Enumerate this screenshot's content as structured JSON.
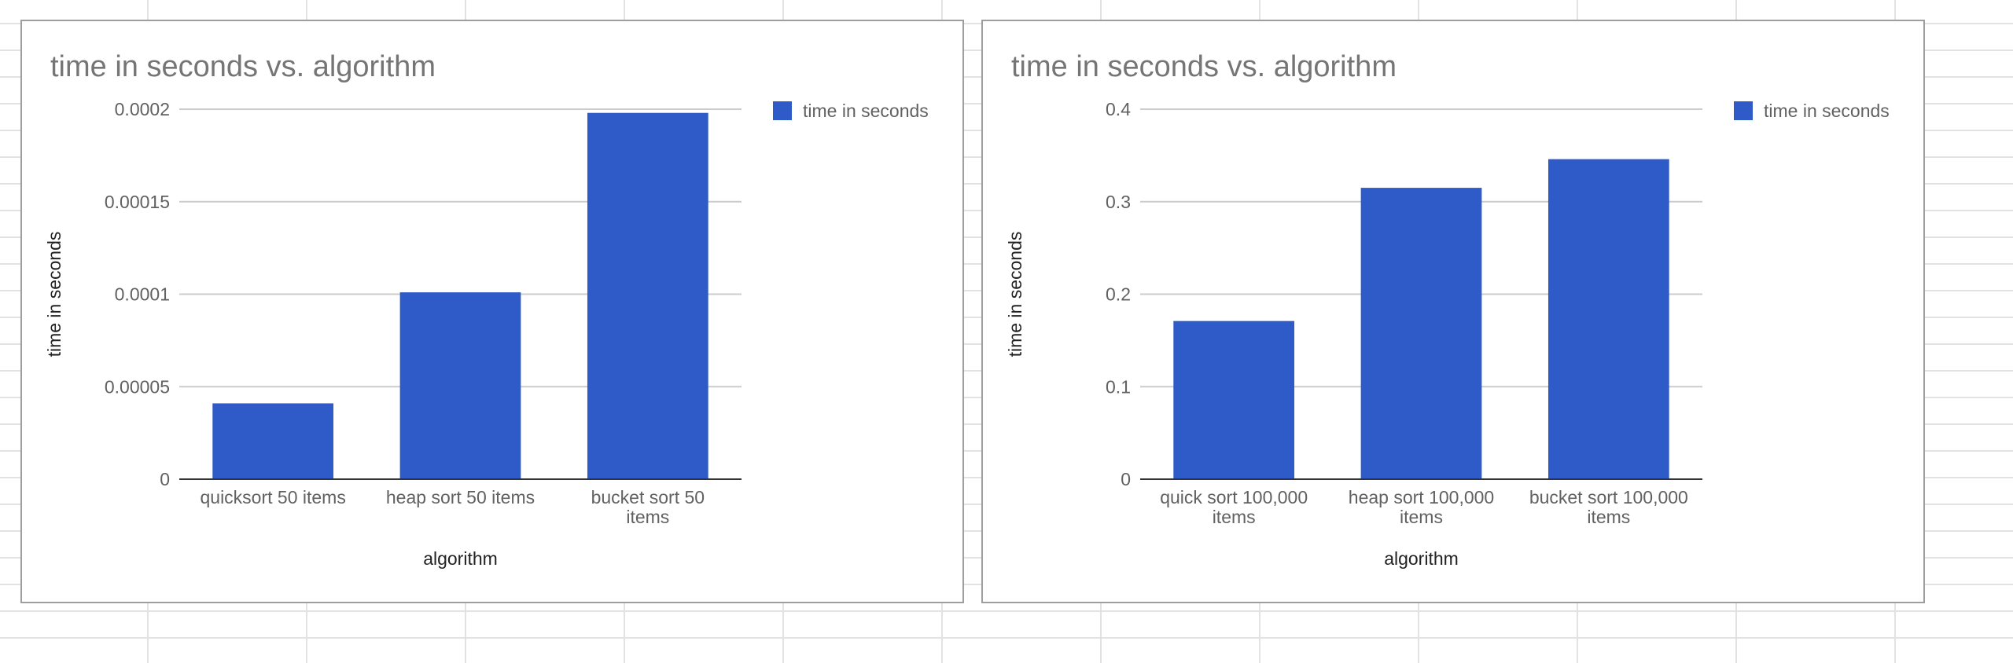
{
  "spreadsheet_grid": {
    "line_color": "#e2e2e2"
  },
  "colors": {
    "bar": "#2e5bc8",
    "gridline": "#cccccc",
    "baseline": "#333333"
  },
  "chart_data": [
    {
      "type": "bar",
      "title": "time in seconds vs. algorithm",
      "xlabel": "algorithm",
      "ylabel": "time in seconds",
      "legend": {
        "position": "right",
        "entries": [
          "time in seconds"
        ]
      },
      "grid": true,
      "ylim": [
        0,
        0.0002
      ],
      "yticks": [
        0,
        5e-05,
        0.0001,
        0.00015,
        0.0002
      ],
      "ytick_labels": [
        "0",
        "0.00005",
        "0.0001",
        "0.00015",
        "0.0002"
      ],
      "categories": [
        "quicksort 50 items",
        "heap sort 50 items",
        "bucket sort 50 items"
      ],
      "category_label_lines": [
        [
          "quicksort 50 items"
        ],
        [
          "heap sort 50 items"
        ],
        [
          "bucket sort 50",
          "items"
        ]
      ],
      "series": [
        {
          "name": "time in seconds",
          "values": [
            4.1e-05,
            0.000101,
            0.000198
          ]
        }
      ]
    },
    {
      "type": "bar",
      "title": "time in seconds vs. algorithm",
      "xlabel": "algorithm",
      "ylabel": "time in seconds",
      "legend": {
        "position": "right",
        "entries": [
          "time in seconds"
        ]
      },
      "grid": true,
      "ylim": [
        0,
        0.4
      ],
      "yticks": [
        0,
        0.1,
        0.2,
        0.3,
        0.4
      ],
      "ytick_labels": [
        "0",
        "0.1",
        "0.2",
        "0.3",
        "0.4"
      ],
      "categories": [
        "quick sort 100,000 items",
        "heap sort 100,000 items",
        "bucket sort 100,000 items"
      ],
      "category_label_lines": [
        [
          "quick sort 100,000",
          "items"
        ],
        [
          "heap sort 100,000",
          "items"
        ],
        [
          "bucket sort 100,000",
          "items"
        ]
      ],
      "series": [
        {
          "name": "time in seconds",
          "values": [
            0.171,
            0.315,
            0.346
          ]
        }
      ]
    }
  ]
}
